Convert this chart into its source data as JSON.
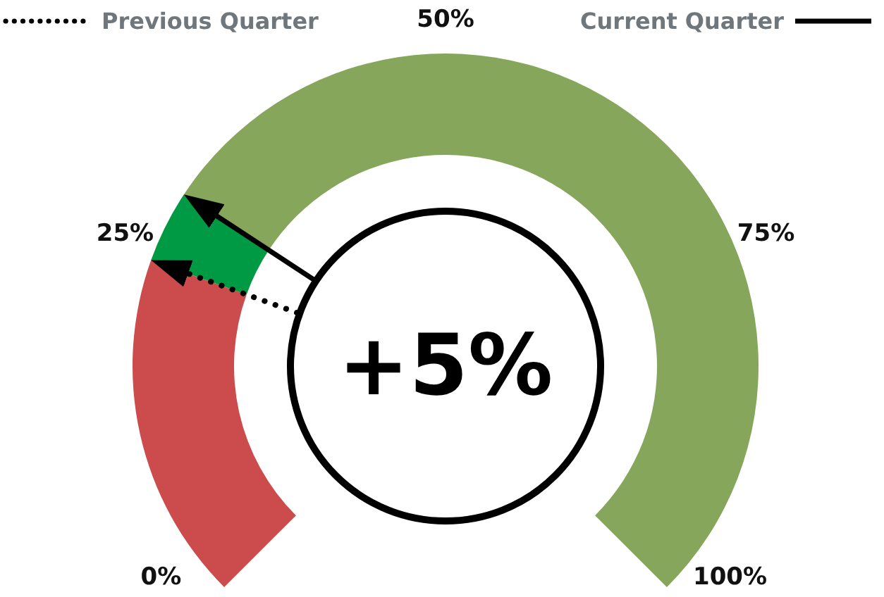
{
  "chart_data": {
    "type": "donut",
    "categories": [
      null,
      null,
      null
    ],
    "values": [
      24,
      5,
      71
    ],
    "colors": [
      "#cc4b4c",
      "#009a44",
      "#86a65c"
    ],
    "annotations": [
      "+5%",
      "Previous Quarter",
      "Current Quarter",
      "0%",
      "25%",
      "50%",
      "75%",
      "100%"
    ]
  }
}
